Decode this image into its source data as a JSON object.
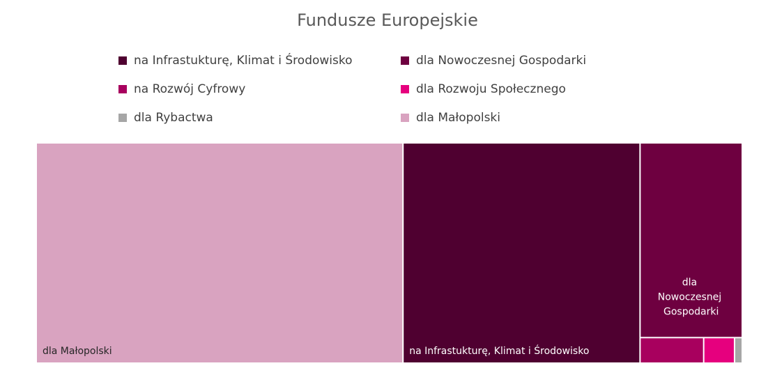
{
  "chart_data": {
    "type": "treemap",
    "title": "Fundusze Europejskie",
    "categories": [
      "na Infrastukturę, Klimat i Środowisko",
      "dla Nowoczesnej Gospodarki",
      "na Rozwój Cyfrowy",
      "dla Rozwoju Społecznego",
      "dla Rybactwa",
      "dla Małopolski"
    ],
    "values": [
      106,
      40.4,
      3.3,
      1.6,
      0.4,
      164
    ],
    "colors": [
      "#4f0030",
      "#6e0040",
      "#a8005e",
      "#e6007e",
      "#a6a6a6",
      "#d9a3c0"
    ]
  }
}
